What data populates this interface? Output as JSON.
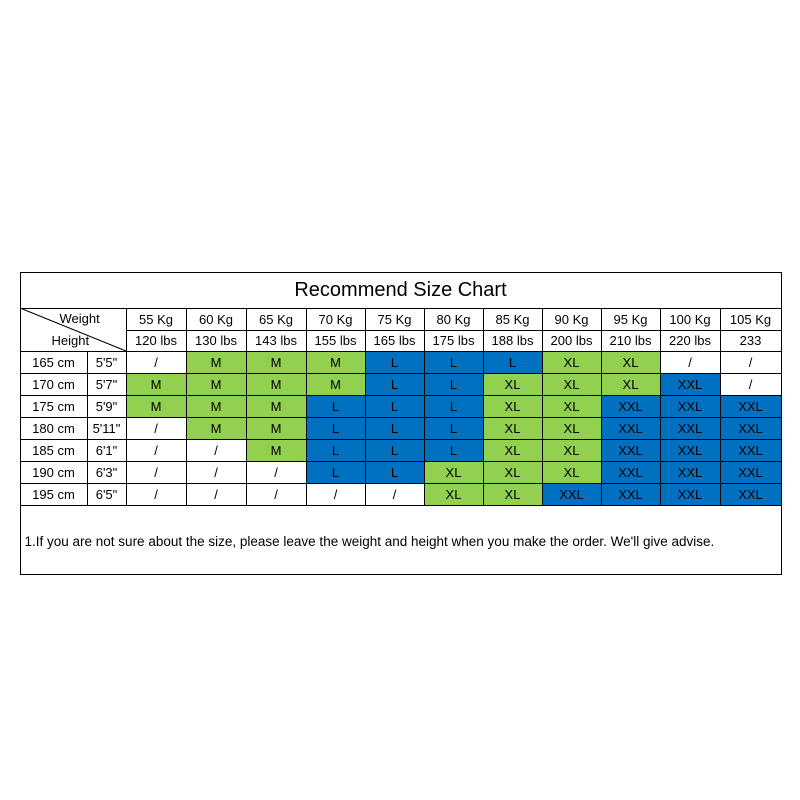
{
  "title": "Recommend Size Chart",
  "header": {
    "weight_label": "Weight",
    "height_label": "Height",
    "weights_kg": [
      "55 Kg",
      "60 Kg",
      "65 Kg",
      "70 Kg",
      "75 Kg",
      "80 Kg",
      "85 Kg",
      "90 Kg",
      "95 Kg",
      "100 Kg",
      "105 Kg"
    ],
    "weights_lbs": [
      "120 lbs",
      "130 lbs",
      "143 lbs",
      "155 lbs",
      "165 lbs",
      "175 lbs",
      "188 lbs",
      "200 lbs",
      "210 lbs",
      "220 lbs",
      "233"
    ]
  },
  "size_colors": {
    "M": "#92d050",
    "L": "#0070c0",
    "XL": "#92d050",
    "XXL": "#0070c0",
    "/": "#ffffff"
  },
  "rows": [
    {
      "cm": "165 cm",
      "ft": "5'5\"",
      "sizes": [
        "/",
        "M",
        "M",
        "M",
        "L",
        "L",
        "L",
        "XL",
        "XL",
        "/",
        "/"
      ]
    },
    {
      "cm": "170 cm",
      "ft": "5'7\"",
      "sizes": [
        "M",
        "M",
        "M",
        "M",
        "L",
        "L",
        "XL",
        "XL",
        "XL",
        "XXL",
        "/"
      ]
    },
    {
      "cm": "175 cm",
      "ft": "5'9\"",
      "sizes": [
        "M",
        "M",
        "M",
        "L",
        "L",
        "L",
        "XL",
        "XL",
        "XXL",
        "XXL",
        "XXL"
      ]
    },
    {
      "cm": "180 cm",
      "ft": "5'11\"",
      "sizes": [
        "/",
        "M",
        "M",
        "L",
        "L",
        "L",
        "XL",
        "XL",
        "XXL",
        "XXL",
        "XXL"
      ]
    },
    {
      "cm": "185 cm",
      "ft": "6'1\"",
      "sizes": [
        "/",
        "/",
        "M",
        "L",
        "L",
        "L",
        "XL",
        "XL",
        "XXL",
        "XXL",
        "XXL"
      ]
    },
    {
      "cm": "190 cm",
      "ft": "6'3\"",
      "sizes": [
        "/",
        "/",
        "/",
        "L",
        "L",
        "XL",
        "XL",
        "XL",
        "XXL",
        "XXL",
        "XXL"
      ]
    },
    {
      "cm": "195 cm",
      "ft": "6'5\"",
      "sizes": [
        "/",
        "/",
        "/",
        "/",
        "/",
        "XL",
        "XL",
        "XXL",
        "XXL",
        "XXL",
        "XXL"
      ]
    }
  ],
  "note": "1.If you are not sure about the size, please leave the weight and height when you make the order. We'll give advise."
}
